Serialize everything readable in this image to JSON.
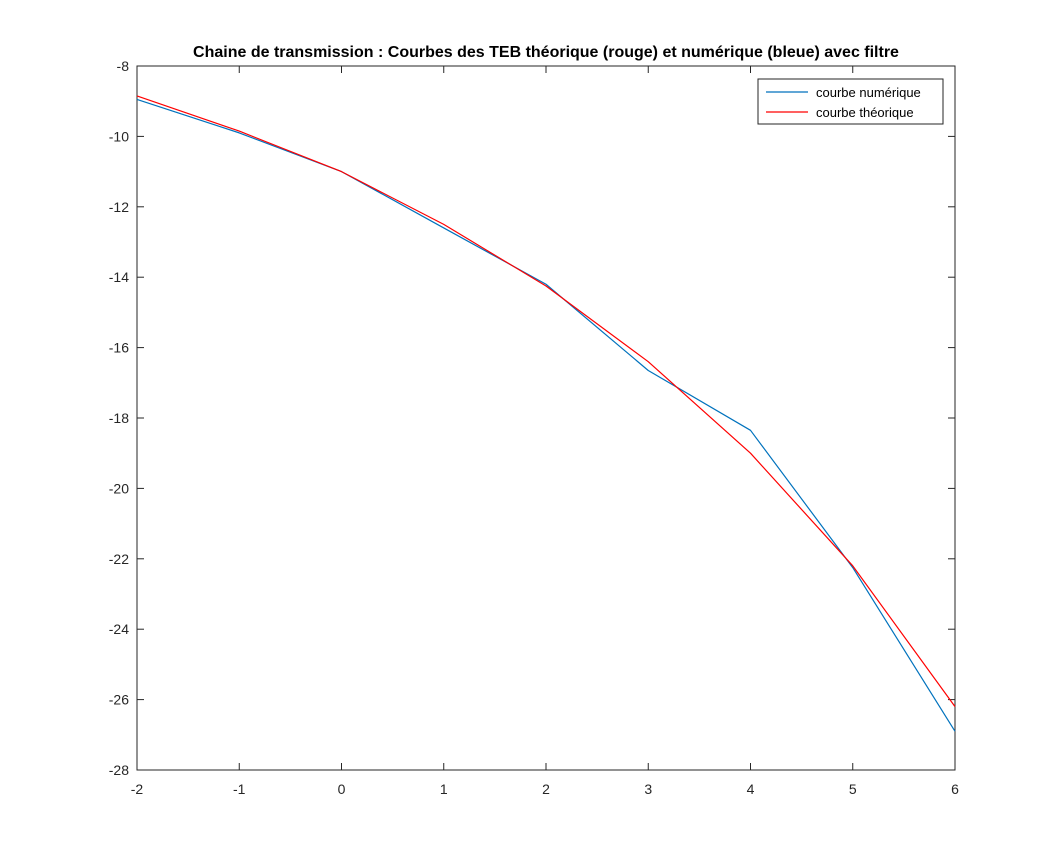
{
  "chart_data": {
    "type": "line",
    "title": "Chaine de transmission : Courbes des TEB théorique (rouge) et numérique (bleue) avec filtre",
    "xlabel": "",
    "ylabel": "",
    "xlim": [
      -2,
      6
    ],
    "ylim": [
      -28,
      -8
    ],
    "x_ticks": [
      "-2",
      "-1",
      "0",
      "1",
      "2",
      "3",
      "4",
      "5",
      "6"
    ],
    "y_ticks": [
      "-8",
      "-10",
      "-12",
      "-14",
      "-16",
      "-18",
      "-20",
      "-22",
      "-24",
      "-26",
      "-28"
    ],
    "grid": false,
    "legend_position": "top-right",
    "x": [
      -2,
      -1,
      0,
      1,
      2,
      3,
      4,
      5,
      6
    ],
    "series": [
      {
        "name": "courbe numérique",
        "color": "#0072BD",
        "values": [
          -8.95,
          -9.9,
          -11.0,
          -12.6,
          -14.2,
          -16.65,
          -18.35,
          -22.25,
          -26.9
        ]
      },
      {
        "name": "courbe théorique",
        "color": "#FF0000",
        "values": [
          -8.85,
          -9.85,
          -11.0,
          -12.5,
          -14.25,
          -16.4,
          -19.0,
          -22.2,
          -26.2
        ]
      }
    ]
  }
}
